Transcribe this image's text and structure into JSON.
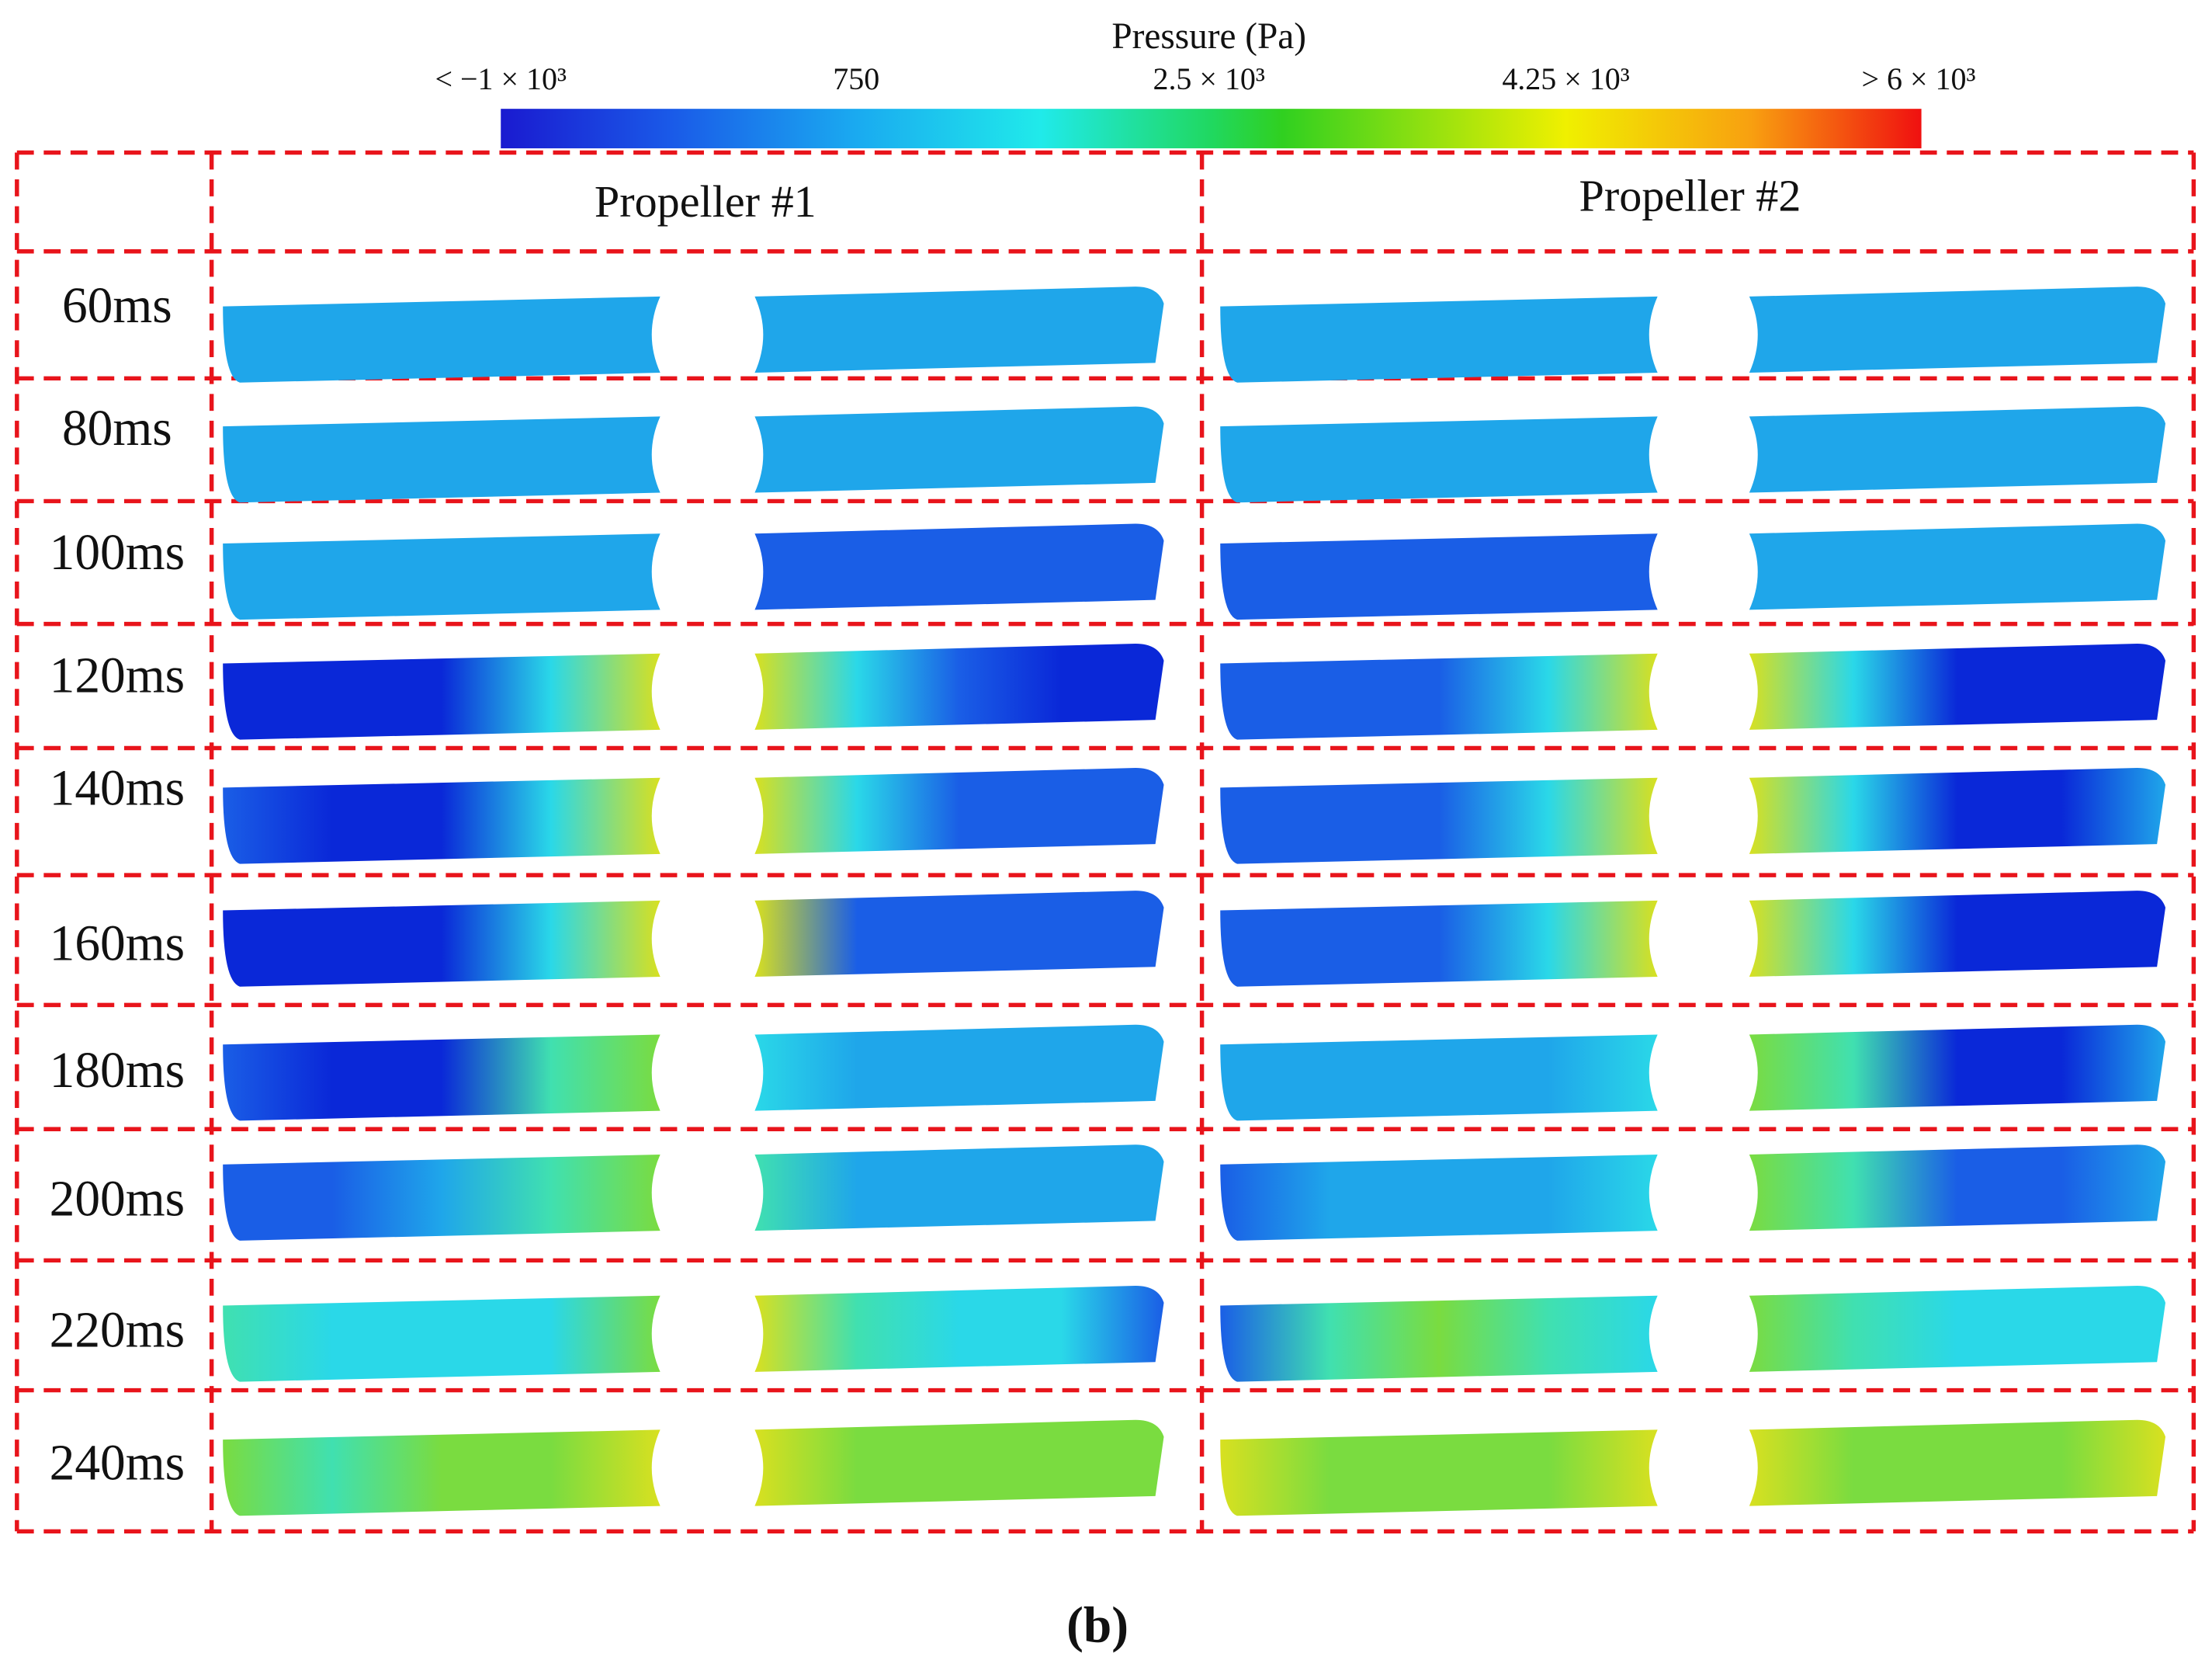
{
  "colorbar": {
    "title": "Pressure (Pa)",
    "ticks": [
      "< −1 × 10³",
      "750",
      "2.5 × 10³",
      "4.25 × 10³",
      "> 6 × 10³"
    ]
  },
  "columns": [
    "Propeller #1",
    "Propeller #2"
  ],
  "rows": [
    "60ms",
    "80ms",
    "100ms",
    "120ms",
    "140ms",
    "160ms",
    "180ms",
    "200ms",
    "220ms",
    "240ms"
  ],
  "caption": "(b)"
}
